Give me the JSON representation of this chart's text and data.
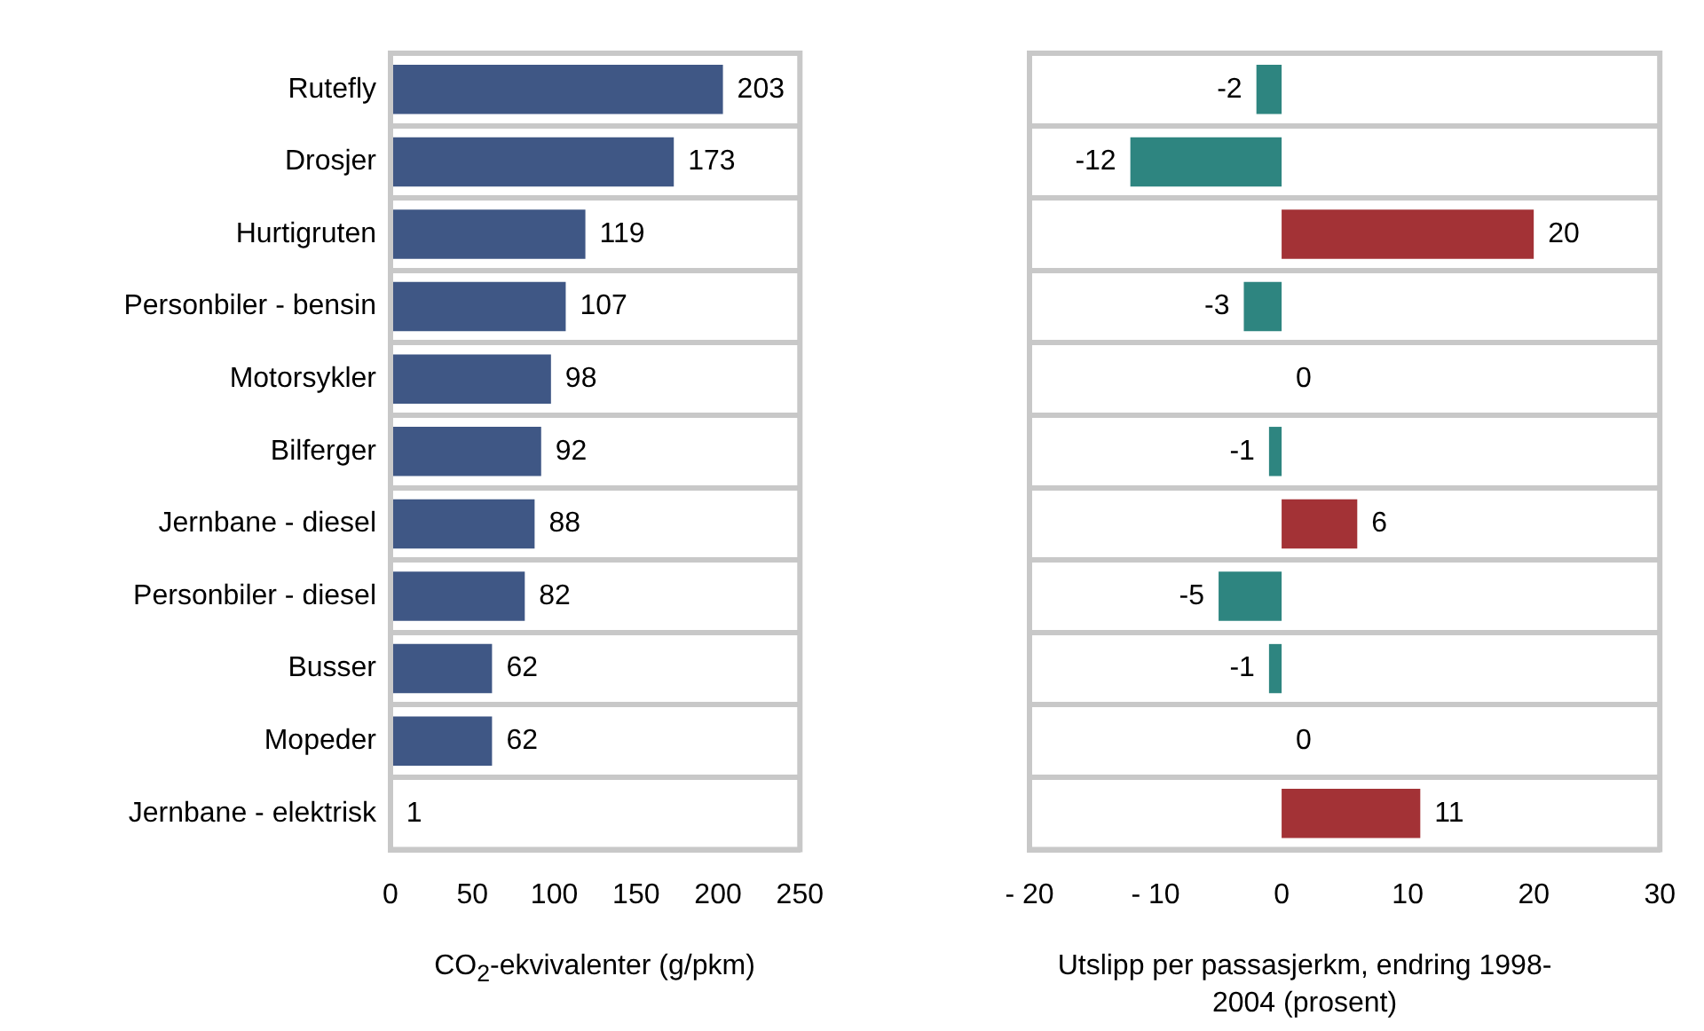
{
  "chart_data": [
    {
      "type": "bar",
      "orientation": "horizontal",
      "categories": [
        "Rutefly",
        "Drosjer",
        "Hurtigruten",
        "Personbiler - bensin",
        "Motorsykler",
        "Bilferger",
        "Jernbane - diesel",
        "Personbiler - diesel",
        "Busser",
        "Mopeder",
        "Jernbane - elektrisk"
      ],
      "values": [
        203,
        173,
        119,
        107,
        98,
        92,
        88,
        82,
        62,
        62,
        1
      ],
      "color": "#3f5785",
      "data_labels": true,
      "xlim": [
        0,
        250
      ],
      "xticks": [
        0,
        50,
        100,
        150,
        200,
        250
      ],
      "xlabel": "CO$_{2}$-ekvivalenter (g/pkm)",
      "grid": "y",
      "legend": false
    },
    {
      "type": "bar",
      "orientation": "horizontal",
      "categories": [
        null,
        null,
        null,
        null,
        null,
        null,
        null,
        null,
        null,
        null,
        null
      ],
      "values": [
        -2,
        -12,
        20,
        -3,
        0,
        -1,
        6,
        -5,
        -1,
        0,
        11
      ],
      "colors": [
        "#2e8580",
        "#2e8580",
        "#a33236",
        "#2e8580",
        "#2e8580",
        "#2e8580",
        "#a33236",
        "#2e8580",
        "#2e8580",
        "#2e8580",
        "#a33236"
      ],
      "data_labels": true,
      "xlim": [
        -20,
        30
      ],
      "xticks": [
        {
          "value": -20,
          "label": "- 20"
        },
        {
          "value": -10,
          "label": "- 10"
        },
        0,
        10,
        20,
        30
      ],
      "xlabel": "Utslipp per passasjerkm, endring 1998-2004 (prosent)",
      "grid": "y",
      "legend": false,
      "tick_labels": "x"
    }
  ]
}
